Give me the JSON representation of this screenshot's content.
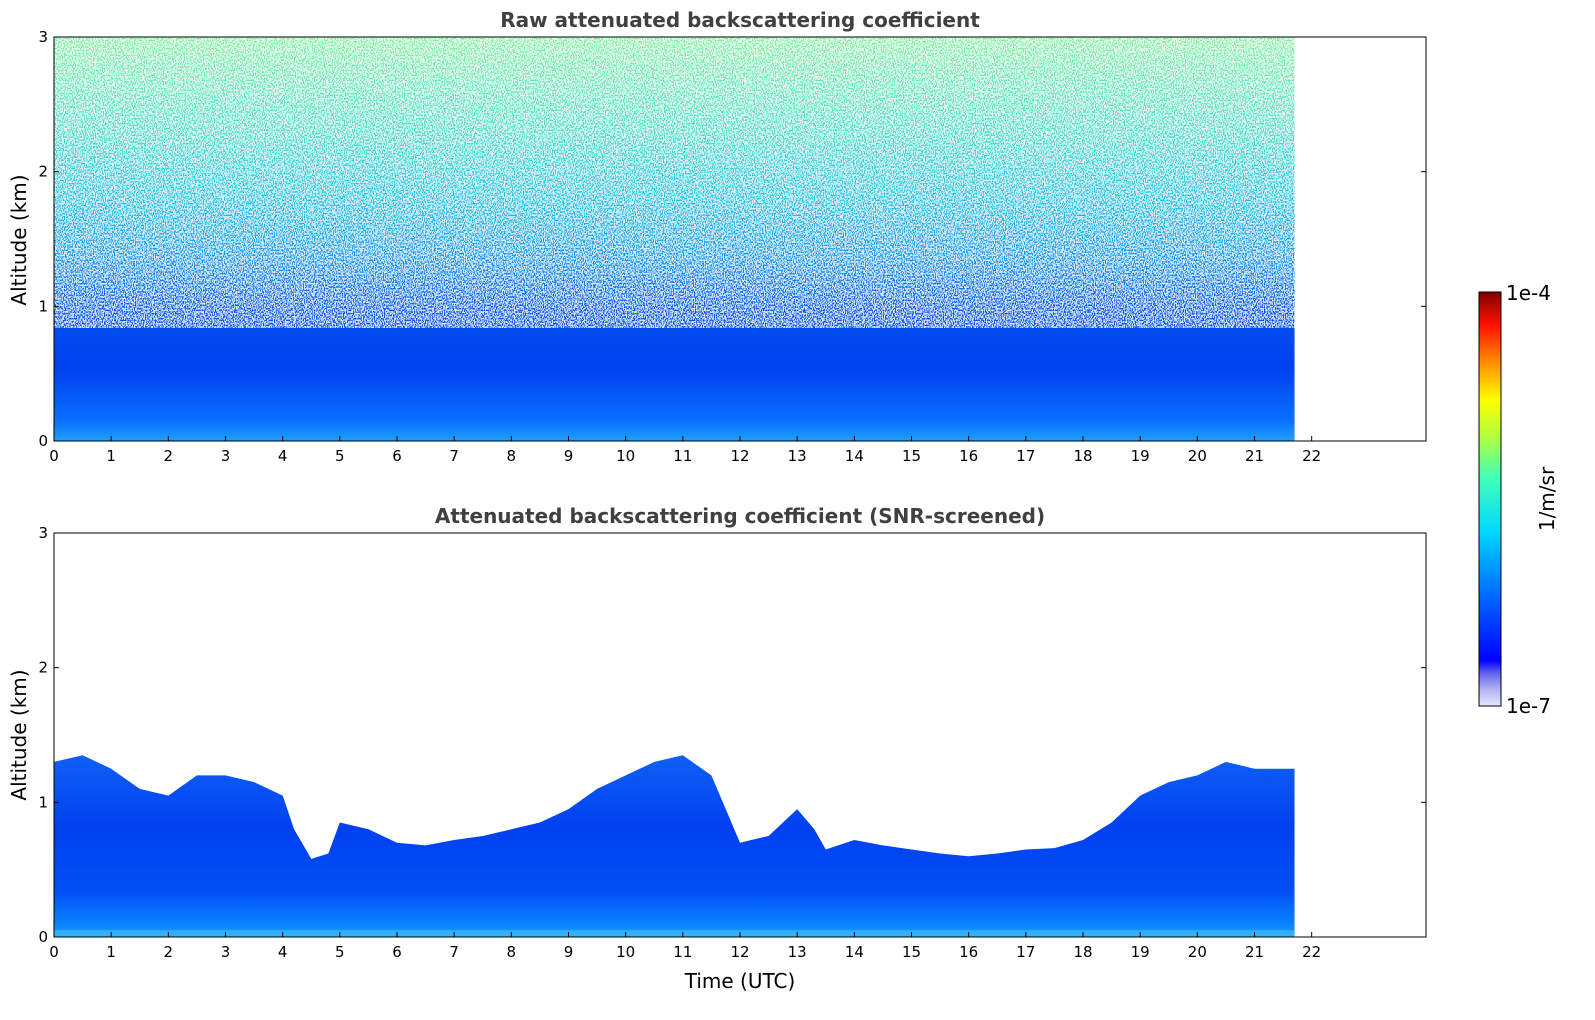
{
  "chart_data": [
    {
      "type": "heatmap",
      "title": "Raw attenuated backscattering coefficient",
      "xlabel": "",
      "ylabel": "Altitude (km)",
      "xlim": [
        0,
        24
      ],
      "ylim": [
        0,
        3
      ],
      "x_ticks": [
        "0",
        "1",
        "2",
        "3",
        "4",
        "5",
        "6",
        "7",
        "8",
        "9",
        "10",
        "11",
        "12",
        "13",
        "14",
        "15",
        "16",
        "17",
        "18",
        "19",
        "20",
        "21",
        "22"
      ],
      "y_ticks": [
        "0",
        "1",
        "2",
        "3"
      ],
      "data_extent_hours": [
        0,
        21.7
      ],
      "colormap": "jet",
      "color_scale": "log",
      "color_range": [
        "1e-7",
        "1e-4"
      ]
    },
    {
      "type": "heatmap",
      "title": "Attenuated backscattering coefficient (SNR-screened)",
      "xlabel": "Time (UTC)",
      "ylabel": "Altitude (km)",
      "xlim": [
        0,
        24
      ],
      "ylim": [
        0,
        3
      ],
      "x_ticks": [
        "0",
        "1",
        "2",
        "3",
        "4",
        "5",
        "6",
        "7",
        "8",
        "9",
        "10",
        "11",
        "12",
        "13",
        "14",
        "15",
        "16",
        "17",
        "18",
        "19",
        "20",
        "21",
        "22"
      ],
      "y_ticks": [
        "0",
        "1",
        "2",
        "3"
      ],
      "data_extent_hours": [
        0,
        21.7
      ],
      "colormap": "jet",
      "color_scale": "log",
      "color_range": [
        "1e-7",
        "1e-4"
      ],
      "boundary_layer_top_km": [
        [
          0,
          1.3
        ],
        [
          0.5,
          1.35
        ],
        [
          1,
          1.25
        ],
        [
          1.5,
          1.1
        ],
        [
          2,
          1.05
        ],
        [
          2.5,
          1.2
        ],
        [
          3,
          1.2
        ],
        [
          3.5,
          1.15
        ],
        [
          4,
          1.05
        ],
        [
          4.2,
          0.8
        ],
        [
          4.5,
          0.58
        ],
        [
          4.8,
          0.62
        ],
        [
          5,
          0.85
        ],
        [
          5.5,
          0.8
        ],
        [
          6,
          0.7
        ],
        [
          6.5,
          0.68
        ],
        [
          7,
          0.72
        ],
        [
          7.5,
          0.75
        ],
        [
          8,
          0.8
        ],
        [
          8.5,
          0.85
        ],
        [
          9,
          0.95
        ],
        [
          9.5,
          1.1
        ],
        [
          10,
          1.2
        ],
        [
          10.5,
          1.3
        ],
        [
          11,
          1.35
        ],
        [
          11.5,
          1.2
        ],
        [
          12,
          0.7
        ],
        [
          12.5,
          0.75
        ],
        [
          13,
          0.95
        ],
        [
          13.3,
          0.8
        ],
        [
          13.5,
          0.65
        ],
        [
          14,
          0.72
        ],
        [
          14.5,
          0.68
        ],
        [
          15,
          0.65
        ],
        [
          15.5,
          0.62
        ],
        [
          16,
          0.6
        ],
        [
          16.5,
          0.62
        ],
        [
          17,
          0.65
        ],
        [
          17.5,
          0.66
        ],
        [
          18,
          0.72
        ],
        [
          18.5,
          0.85
        ],
        [
          19,
          1.05
        ],
        [
          19.5,
          1.15
        ],
        [
          20,
          1.2
        ],
        [
          20.5,
          1.3
        ],
        [
          21,
          1.25
        ],
        [
          21.7,
          1.25
        ]
      ]
    }
  ],
  "colorbar": {
    "label": "1/m/sr",
    "max_label": "1e-4",
    "min_label": "1e-7"
  }
}
